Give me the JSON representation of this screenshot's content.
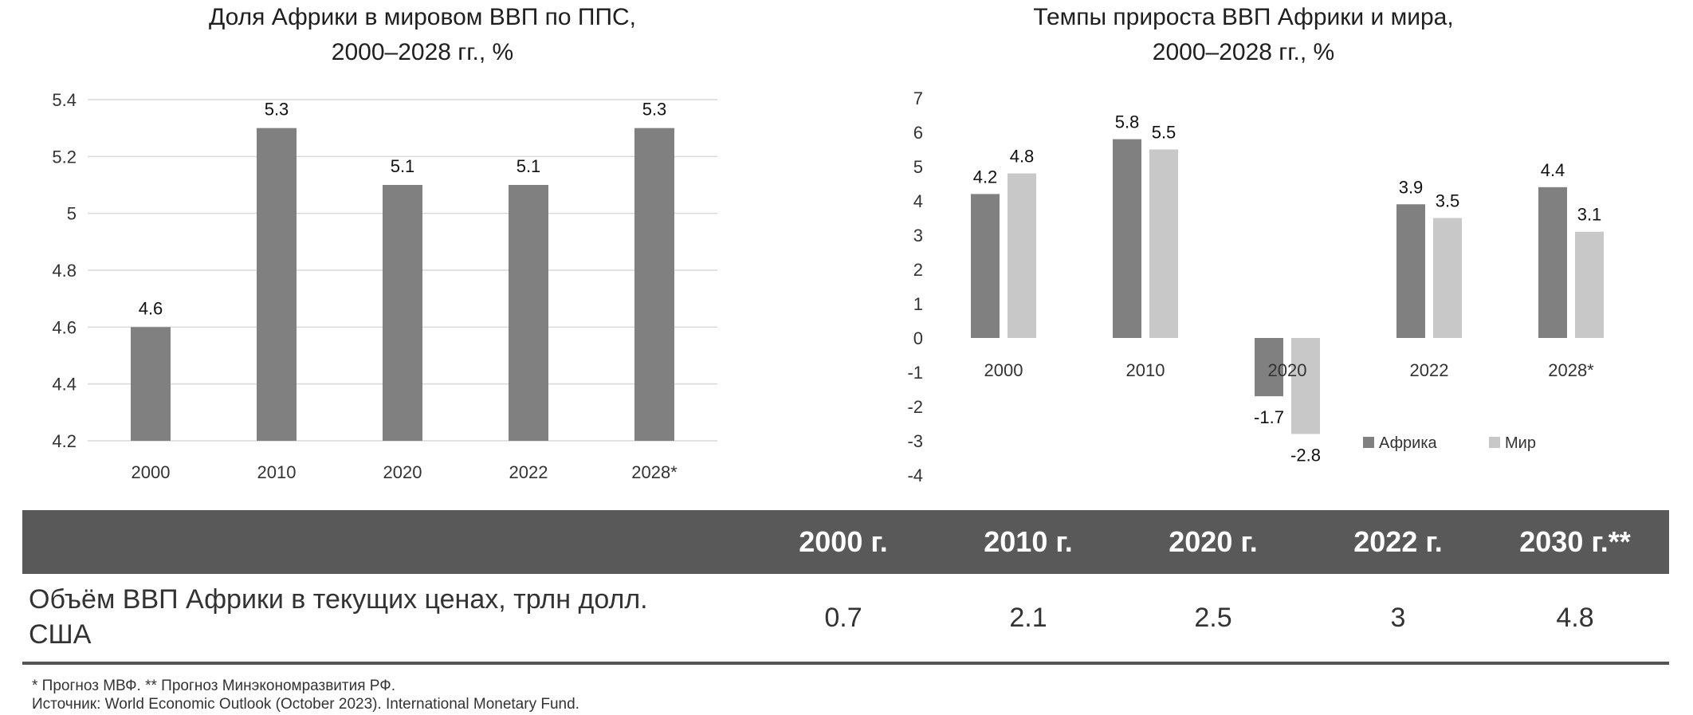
{
  "chart_data": [
    {
      "type": "bar",
      "title": "Доля Африки в мировом ВВП по ППС,",
      "subtitle": "2000–2028 гг., %",
      "categories": [
        "2000",
        "2010",
        "2020",
        "2022",
        "2028*"
      ],
      "values": [
        4.6,
        5.3,
        5.1,
        5.1,
        5.3
      ],
      "data_labels": [
        "4.6",
        "5.3",
        "5.1",
        "5.1",
        "5.3"
      ],
      "yticks": [
        "4.2",
        "4.4",
        "4.6",
        "4.8",
        "5",
        "5.2",
        "5.4"
      ],
      "ylim": [
        4.2,
        5.4
      ],
      "grid": true,
      "color": "#808080"
    },
    {
      "type": "bar",
      "title": "Темпы прироста ВВП Африки и мира,",
      "subtitle": "2000–2028 гг., %",
      "categories": [
        "2000",
        "2010",
        "2020",
        "2022",
        "2028*"
      ],
      "series": [
        {
          "name": "Африка",
          "values": [
            4.2,
            5.8,
            -1.7,
            3.9,
            4.4
          ],
          "labels": [
            "4.2",
            "5.8",
            "-1.7",
            "3.9",
            "4.4"
          ],
          "color": "#808080"
        },
        {
          "name": "Мир",
          "values": [
            4.8,
            5.5,
            -2.8,
            3.5,
            3.1
          ],
          "labels": [
            "4.8",
            "5.5",
            "-2.8",
            "3.5",
            "3.1"
          ],
          "color": "#c8c8c8"
        }
      ],
      "yticks": [
        "-4",
        "-3",
        "-2",
        "-1",
        "0",
        "1",
        "2",
        "3",
        "4",
        "5",
        "6",
        "7"
      ],
      "ylim": [
        -4,
        7
      ],
      "grid": false,
      "legend": "bottom-right"
    }
  ],
  "table": {
    "headers": [
      "2000 г.",
      "2010 г.",
      "2020 г.",
      "2022 г.",
      "2030 г.**"
    ],
    "row_label_line1": "Объём ВВП Африки в текущих ценах, трлн долл.",
    "row_label_line2": "США",
    "values": [
      "0.7",
      "2.1",
      "2.5",
      "3",
      "4.8"
    ],
    "header_color": "#595959"
  },
  "footnotes": {
    "line1": "* Прогноз МВФ. ** Прогноз Минэкономразвития РФ.",
    "line2": "Источник: World Economic Outlook (October 2023). International Monetary Fund."
  }
}
